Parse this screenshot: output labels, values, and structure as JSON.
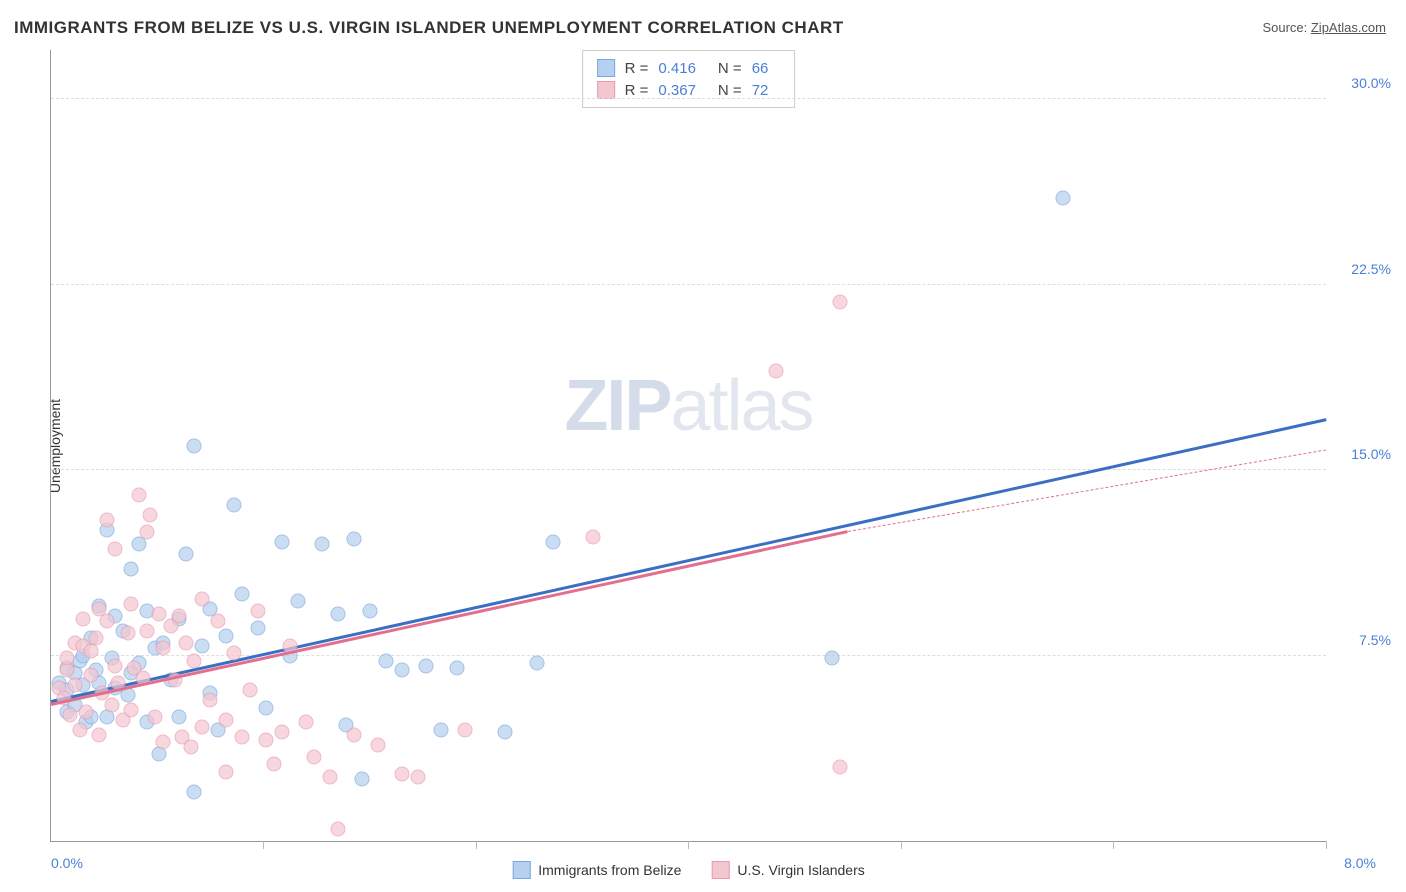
{
  "title": "IMMIGRANTS FROM BELIZE VS U.S. VIRGIN ISLANDER UNEMPLOYMENT CORRELATION CHART",
  "source_label": "Source: ",
  "source_link": "ZipAtlas.com",
  "y_axis_label": "Unemployment",
  "watermark_bold": "ZIP",
  "watermark_light": "atlas",
  "chart": {
    "type": "scatter",
    "xlim": [
      0.0,
      8.0
    ],
    "ylim": [
      0.0,
      32.0
    ],
    "x_tick_labels": [
      {
        "value": 0.0,
        "label": "0.0%"
      },
      {
        "value": 8.0,
        "label": "8.0%"
      }
    ],
    "x_minor_ticks_every": 1.333,
    "y_tick_labels": [
      {
        "value": 7.5,
        "label": "7.5%"
      },
      {
        "value": 15.0,
        "label": "15.0%"
      },
      {
        "value": 22.5,
        "label": "22.5%"
      },
      {
        "value": 30.0,
        "label": "30.0%"
      }
    ],
    "background_color": "#ffffff",
    "grid_color": "#dddddd",
    "axis_color": "#999999",
    "series": [
      {
        "name": "Immigrants from Belize",
        "fill_color": "#b6d0ef",
        "stroke_color": "#7aa8de",
        "trend_color": "#3b6fc4",
        "r_value": "0.416",
        "n_value": "66",
        "trend": {
          "x1": 0.0,
          "y1": 5.6,
          "x2": 8.0,
          "y2": 17.0
        },
        "points": [
          [
            0.05,
            6.4
          ],
          [
            0.1,
            7.0
          ],
          [
            0.1,
            6.1
          ],
          [
            0.1,
            5.2
          ],
          [
            0.15,
            6.8
          ],
          [
            0.15,
            5.5
          ],
          [
            0.18,
            7.3
          ],
          [
            0.2,
            7.5
          ],
          [
            0.2,
            6.3
          ],
          [
            0.22,
            4.8
          ],
          [
            0.25,
            8.2
          ],
          [
            0.25,
            5.0
          ],
          [
            0.28,
            6.9
          ],
          [
            0.3,
            6.4
          ],
          [
            0.3,
            9.5
          ],
          [
            0.35,
            5.0
          ],
          [
            0.35,
            12.6
          ],
          [
            0.38,
            7.4
          ],
          [
            0.4,
            9.1
          ],
          [
            0.4,
            6.2
          ],
          [
            0.45,
            8.5
          ],
          [
            0.48,
            5.9
          ],
          [
            0.5,
            11.0
          ],
          [
            0.5,
            6.8
          ],
          [
            0.55,
            12.0
          ],
          [
            0.55,
            7.2
          ],
          [
            0.6,
            4.8
          ],
          [
            0.6,
            9.3
          ],
          [
            0.65,
            7.8
          ],
          [
            0.68,
            3.5
          ],
          [
            0.7,
            8.0
          ],
          [
            0.75,
            6.5
          ],
          [
            0.8,
            9.0
          ],
          [
            0.8,
            5.0
          ],
          [
            0.85,
            11.6
          ],
          [
            0.9,
            16.0
          ],
          [
            0.9,
            2.0
          ],
          [
            0.95,
            7.9
          ],
          [
            1.0,
            9.4
          ],
          [
            1.0,
            6.0
          ],
          [
            1.05,
            4.5
          ],
          [
            1.1,
            8.3
          ],
          [
            1.15,
            13.6
          ],
          [
            1.2,
            10.0
          ],
          [
            1.3,
            8.6
          ],
          [
            1.35,
            5.4
          ],
          [
            1.45,
            12.1
          ],
          [
            1.5,
            7.5
          ],
          [
            1.55,
            9.7
          ],
          [
            1.7,
            12.0
          ],
          [
            1.8,
            9.2
          ],
          [
            1.85,
            4.7
          ],
          [
            1.9,
            12.2
          ],
          [
            1.95,
            2.5
          ],
          [
            2.0,
            9.3
          ],
          [
            2.1,
            7.3
          ],
          [
            2.2,
            6.9
          ],
          [
            2.35,
            7.1
          ],
          [
            2.45,
            4.5
          ],
          [
            2.55,
            7.0
          ],
          [
            2.85,
            4.4
          ],
          [
            3.05,
            7.2
          ],
          [
            3.15,
            12.1
          ],
          [
            4.9,
            7.4
          ],
          [
            6.35,
            26.0
          ]
        ]
      },
      {
        "name": "U.S. Virgin Islanders",
        "fill_color": "#f4c6d0",
        "stroke_color": "#e99bb0",
        "trend_color": "#e36f8f",
        "r_value": "0.367",
        "n_value": "72",
        "trend_solid": {
          "x1": 0.0,
          "y1": 5.5,
          "x2": 5.0,
          "y2": 12.5
        },
        "trend_dashed": {
          "x1": 5.0,
          "y1": 12.5,
          "x2": 8.0,
          "y2": 15.8
        },
        "points": [
          [
            0.05,
            6.2
          ],
          [
            0.08,
            5.8
          ],
          [
            0.1,
            6.9
          ],
          [
            0.1,
            7.4
          ],
          [
            0.12,
            5.1
          ],
          [
            0.15,
            8.0
          ],
          [
            0.15,
            6.3
          ],
          [
            0.18,
            4.5
          ],
          [
            0.2,
            7.9
          ],
          [
            0.2,
            9.0
          ],
          [
            0.22,
            5.2
          ],
          [
            0.25,
            6.7
          ],
          [
            0.25,
            7.7
          ],
          [
            0.28,
            8.2
          ],
          [
            0.3,
            4.3
          ],
          [
            0.3,
            9.4
          ],
          [
            0.32,
            6.0
          ],
          [
            0.35,
            8.9
          ],
          [
            0.35,
            13.0
          ],
          [
            0.38,
            5.5
          ],
          [
            0.4,
            11.8
          ],
          [
            0.4,
            7.1
          ],
          [
            0.42,
            6.4
          ],
          [
            0.45,
            4.9
          ],
          [
            0.48,
            8.4
          ],
          [
            0.5,
            9.6
          ],
          [
            0.5,
            5.3
          ],
          [
            0.52,
            7.0
          ],
          [
            0.55,
            14.0
          ],
          [
            0.58,
            6.6
          ],
          [
            0.6,
            8.5
          ],
          [
            0.6,
            12.5
          ],
          [
            0.62,
            13.2
          ],
          [
            0.65,
            5.0
          ],
          [
            0.68,
            9.2
          ],
          [
            0.7,
            4.0
          ],
          [
            0.7,
            7.8
          ],
          [
            0.75,
            8.7
          ],
          [
            0.78,
            6.5
          ],
          [
            0.8,
            9.1
          ],
          [
            0.82,
            4.2
          ],
          [
            0.85,
            8.0
          ],
          [
            0.88,
            3.8
          ],
          [
            0.9,
            7.3
          ],
          [
            0.95,
            4.6
          ],
          [
            0.95,
            9.8
          ],
          [
            1.0,
            5.7
          ],
          [
            1.05,
            8.9
          ],
          [
            1.1,
            4.9
          ],
          [
            1.1,
            2.8
          ],
          [
            1.15,
            7.6
          ],
          [
            1.2,
            4.2
          ],
          [
            1.25,
            6.1
          ],
          [
            1.3,
            9.3
          ],
          [
            1.35,
            4.1
          ],
          [
            1.4,
            3.1
          ],
          [
            1.45,
            4.4
          ],
          [
            1.5,
            7.9
          ],
          [
            1.6,
            4.8
          ],
          [
            1.65,
            3.4
          ],
          [
            1.75,
            2.6
          ],
          [
            1.8,
            0.5
          ],
          [
            1.9,
            4.3
          ],
          [
            2.05,
            3.9
          ],
          [
            2.2,
            2.7
          ],
          [
            2.3,
            2.6
          ],
          [
            2.6,
            4.5
          ],
          [
            3.4,
            12.3
          ],
          [
            4.55,
            19.0
          ],
          [
            4.95,
            21.8
          ],
          [
            4.95,
            3.0
          ]
        ]
      }
    ],
    "legend_top": {
      "r_label": "R =",
      "n_label": "N ="
    }
  }
}
